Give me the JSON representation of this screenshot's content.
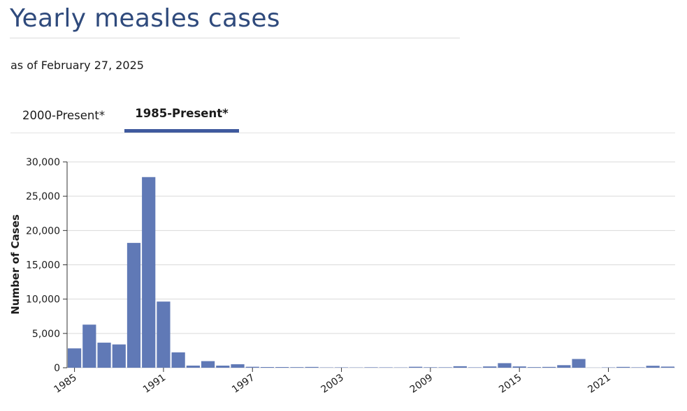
{
  "page": {
    "title": "Yearly measles cases",
    "subtitle": "as of February 27, 2025"
  },
  "tabs": [
    {
      "label": "2000-Present*",
      "active": false
    },
    {
      "label": "1985-Present*",
      "active": true
    }
  ],
  "colors": {
    "title": "#2f4a7c",
    "bar": "#6079b6",
    "tab_active_underline": "#3f5a9e",
    "grid": "#d9d9d9"
  },
  "chart_data": {
    "type": "bar",
    "title": "",
    "xlabel": "",
    "ylabel": "Number of Cases",
    "ylim": [
      0,
      30000
    ],
    "yticks": [
      0,
      5000,
      10000,
      15000,
      20000,
      25000,
      30000
    ],
    "ytick_labels": [
      "0",
      "5,000",
      "10,000",
      "15,000",
      "20,000",
      "25,000",
      "30,000"
    ],
    "xtick_labels": [
      "1985",
      "1991",
      "1997",
      "2003",
      "2009",
      "2015",
      "2021"
    ],
    "grid": "horizontal",
    "categories": [
      1985,
      1986,
      1987,
      1988,
      1989,
      1990,
      1991,
      1992,
      1993,
      1994,
      1995,
      1996,
      1997,
      1998,
      1999,
      2000,
      2001,
      2002,
      2003,
      2004,
      2005,
      2006,
      2007,
      2008,
      2009,
      2010,
      2011,
      2012,
      2013,
      2014,
      2015,
      2016,
      2017,
      2018,
      2019,
      2020,
      2021,
      2022,
      2023,
      2024,
      2025
    ],
    "values": [
      2822,
      6282,
      3655,
      3396,
      18193,
      27786,
      9643,
      2237,
      312,
      963,
      309,
      508,
      138,
      100,
      100,
      86,
      116,
      44,
      56,
      37,
      66,
      55,
      43,
      140,
      71,
      63,
      220,
      55,
      187,
      667,
      188,
      86,
      120,
      375,
      1274,
      13,
      49,
      121,
      59,
      285,
      164
    ]
  }
}
